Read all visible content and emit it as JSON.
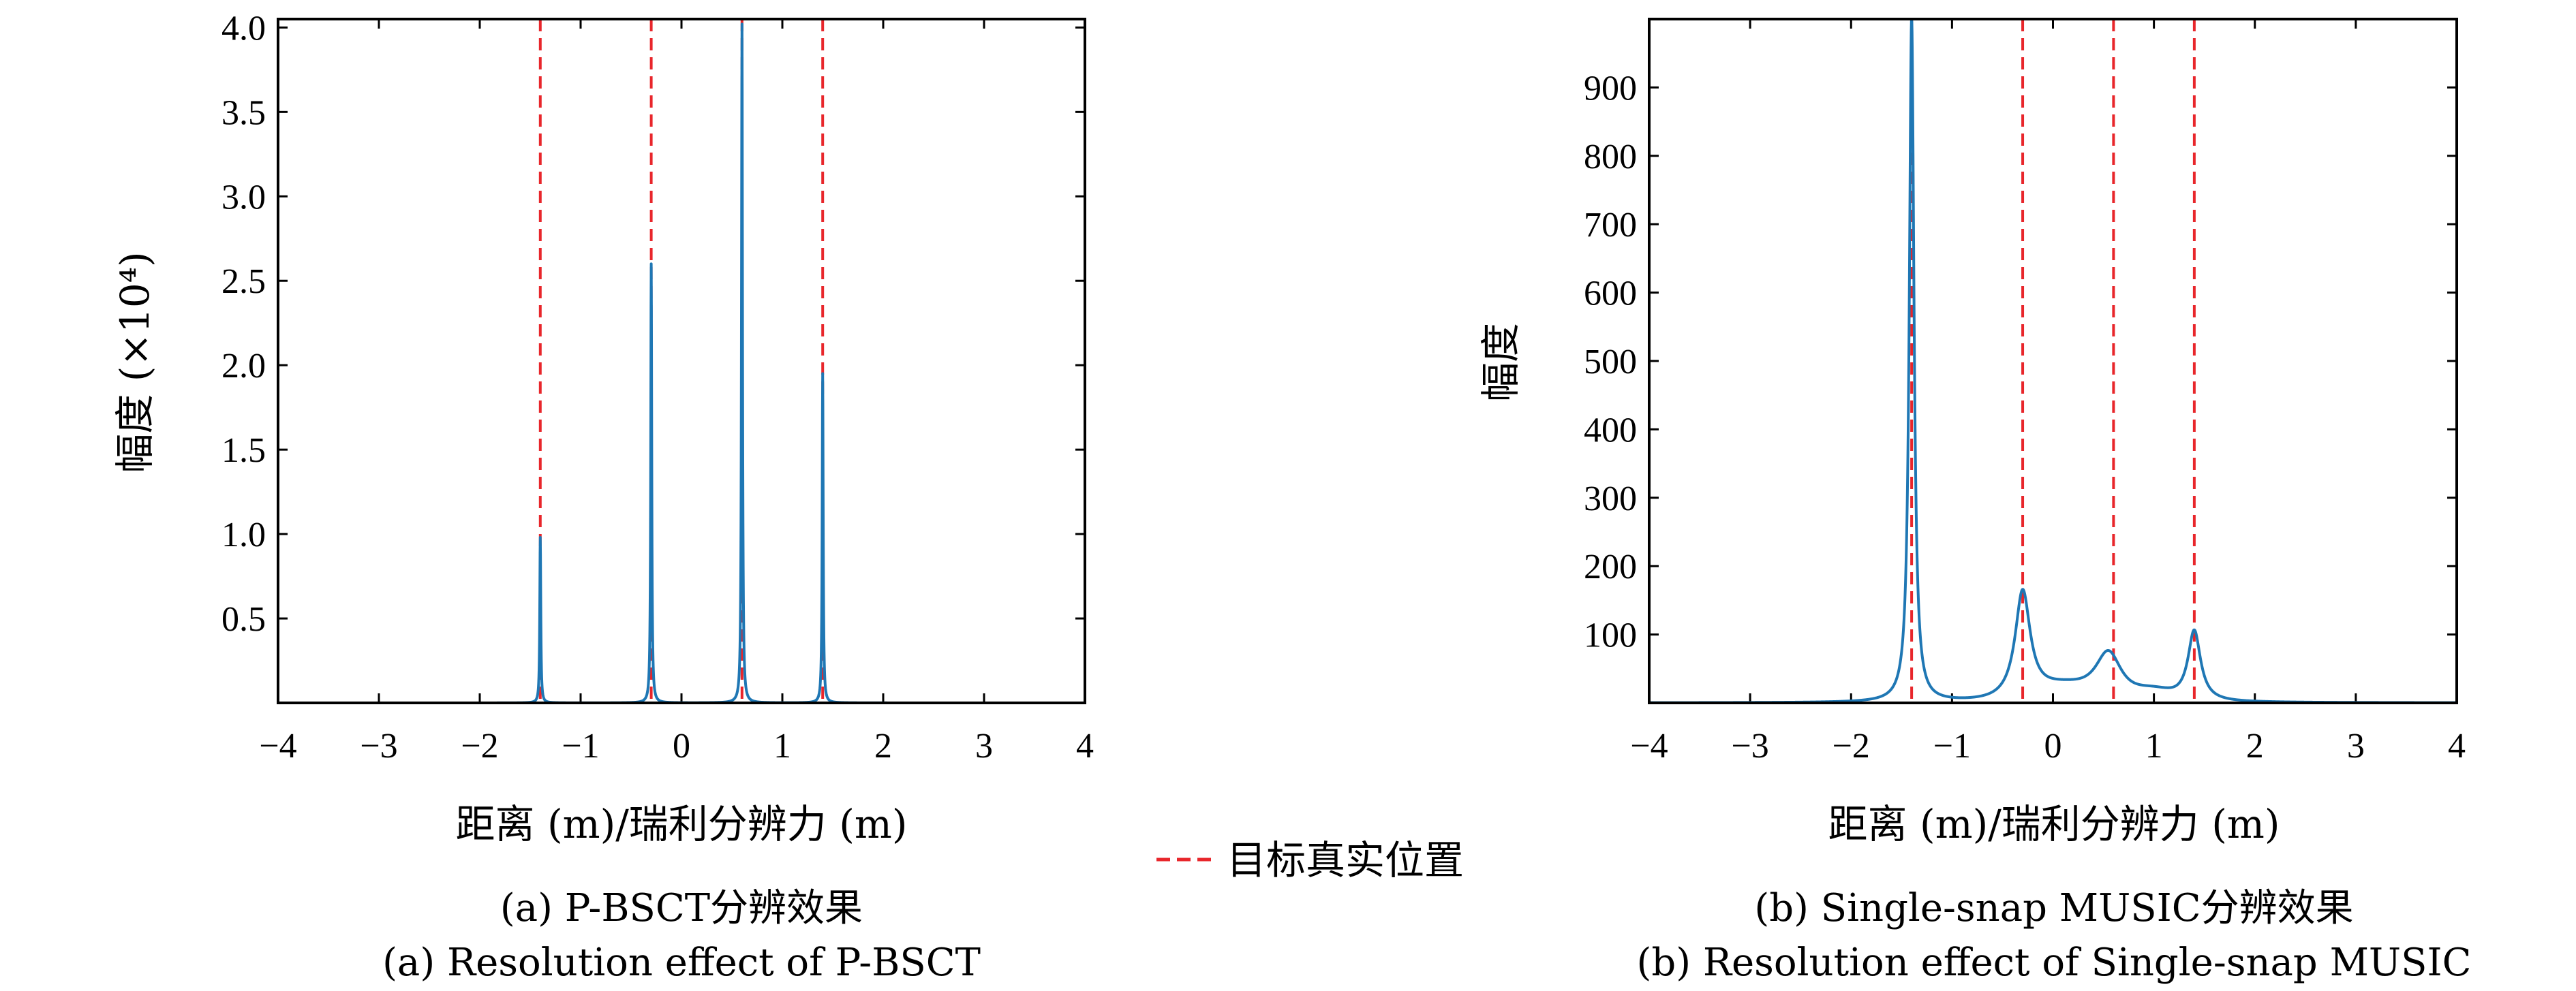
{
  "legend": {
    "label": "目标真实位置",
    "color": "#e8262b"
  },
  "chart_data": [
    {
      "type": "line",
      "id": "a",
      "xlabel": "距离 (m)/瑞利分辨力 (m)",
      "ylabel": "幅度 (×10⁴)",
      "xlim": [
        -4,
        4
      ],
      "ylim": [
        0,
        4.05
      ],
      "xticks": [
        -4,
        -3,
        -2,
        -1,
        0,
        1,
        2,
        3,
        4
      ],
      "xtick_labels": [
        "−4",
        "−3",
        "−2",
        "−1",
        "0",
        "1",
        "2",
        "3",
        "4"
      ],
      "yticks": [
        0.5,
        1.0,
        1.5,
        2.0,
        2.5,
        3.0,
        3.5,
        4.0
      ],
      "ytick_labels": [
        "0.5",
        "1.0",
        "1.5",
        "2.0",
        "2.5",
        "3.0",
        "3.5",
        "4.0"
      ],
      "line_color": "#1f77b4",
      "true_positions": [
        -1.4,
        -0.3,
        0.6,
        1.4
      ],
      "peaks": [
        {
          "x": -1.4,
          "y": 0.98
        },
        {
          "x": -0.3,
          "y": 2.6
        },
        {
          "x": 0.6,
          "y": 4.02
        },
        {
          "x": 1.4,
          "y": 1.95
        }
      ],
      "caption_cn": "(a) P-BSCT分辨效果",
      "caption_en": "(a) Resolution effect of P-BSCT"
    },
    {
      "type": "line",
      "id": "b",
      "xlabel": "距离 (m)/瑞利分辨力 (m)",
      "ylabel": "幅度",
      "xlim": [
        -4,
        4
      ],
      "ylim": [
        0,
        1000
      ],
      "xticks": [
        -4,
        -3,
        -2,
        -1,
        0,
        1,
        2,
        3,
        4
      ],
      "xtick_labels": [
        "−4",
        "−3",
        "−2",
        "−1",
        "0",
        "1",
        "2",
        "3",
        "4"
      ],
      "yticks": [
        100,
        200,
        300,
        400,
        500,
        600,
        700,
        800,
        900
      ],
      "ytick_labels": [
        "100",
        "200",
        "300",
        "400",
        "500",
        "600",
        "700",
        "800",
        "900"
      ],
      "line_color": "#1f77b4",
      "true_positions": [
        -1.4,
        -0.3,
        0.6,
        1.4
      ],
      "peaks": [
        {
          "x": -1.4,
          "y": 1000
        },
        {
          "x": -0.3,
          "y": 158
        },
        {
          "x": 0.55,
          "y": 70
        },
        {
          "x": 1.4,
          "y": 103
        }
      ],
      "caption_cn": "(b) Single-snap MUSIC分辨效果",
      "caption_en": "(b) Resolution effect of Single-snap MUSIC"
    }
  ]
}
